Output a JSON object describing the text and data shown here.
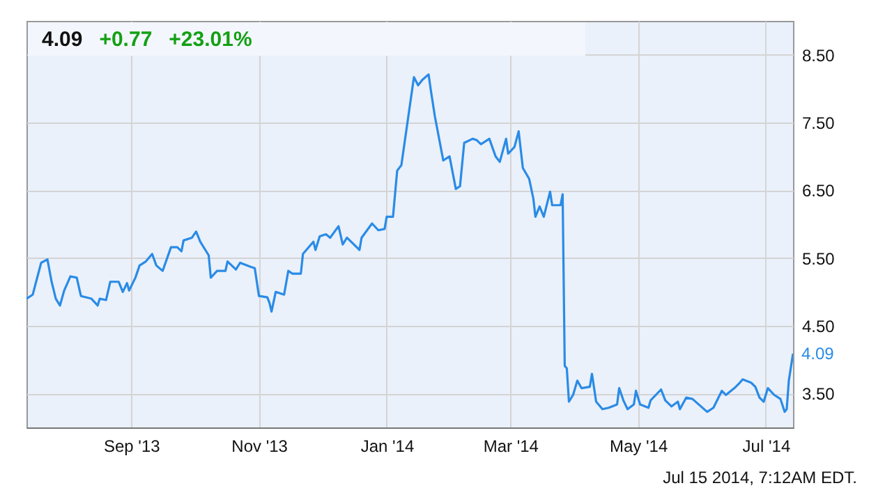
{
  "chart_data": {
    "type": "line",
    "annotations": [
      "4.09",
      "+0.77",
      "+23.01%",
      "Jul 15 2014, 7:12AM EDT.",
      {
        "text": "4.09",
        "x": "2014-07-14",
        "y": 4.09
      }
    ],
    "x": [
      "2013-07-13",
      "2013-07-16",
      "2013-07-17",
      "2013-07-20",
      "2013-07-23",
      "2013-07-25",
      "2013-07-27",
      "2013-07-29",
      "2013-07-31",
      "2013-08-03",
      "2013-08-06",
      "2013-08-08",
      "2013-08-13",
      "2013-08-16",
      "2013-08-17",
      "2013-08-20",
      "2013-08-22",
      "2013-08-26",
      "2013-08-28",
      "2013-08-30",
      "2013-08-31",
      "2013-09-03",
      "2013-09-05",
      "2013-09-08",
      "2013-09-11",
      "2013-09-13",
      "2013-09-16",
      "2013-09-20",
      "2013-09-23",
      "2013-09-25",
      "2013-09-26",
      "2013-09-30",
      "2013-10-02",
      "2013-10-04",
      "2013-10-08",
      "2013-10-09",
      "2013-10-12",
      "2013-10-16",
      "2013-10-17",
      "2013-10-21",
      "2013-10-23",
      "2013-10-28",
      "2013-10-30",
      "2013-11-01",
      "2013-11-05",
      "2013-11-06",
      "2013-11-07",
      "2013-11-09",
      "2013-11-13",
      "2013-11-15",
      "2013-11-17",
      "2013-11-21",
      "2013-11-22",
      "2013-11-27",
      "2013-11-28",
      "2013-11-30",
      "2013-12-03",
      "2013-12-05",
      "2013-12-09",
      "2013-12-11",
      "2013-12-13",
      "2013-12-19",
      "2013-12-20",
      "2013-12-25",
      "2013-12-28",
      "2013-12-31",
      "2014-01-01",
      "2014-01-04",
      "2014-01-06",
      "2014-01-08",
      "2014-01-14",
      "2014-01-16",
      "2014-01-18",
      "2014-01-21",
      "2014-01-22",
      "2014-01-24",
      "2014-01-28",
      "2014-01-31",
      "2014-02-03",
      "2014-02-05",
      "2014-02-07",
      "2014-02-11",
      "2014-02-13",
      "2014-02-15",
      "2014-02-19",
      "2014-02-22",
      "2014-02-24",
      "2014-02-27",
      "2014-02-28",
      "2014-03-03",
      "2014-03-05",
      "2014-03-07",
      "2014-03-10",
      "2014-03-12",
      "2014-03-13",
      "2014-03-15",
      "2014-03-17",
      "2014-03-20",
      "2014-03-21",
      "2014-03-25",
      "2014-03-26",
      "2014-03-27",
      "2014-03-28",
      "2014-03-29",
      "2014-03-31",
      "2014-04-02",
      "2014-04-04",
      "2014-04-08",
      "2014-04-09",
      "2014-04-11",
      "2014-04-14",
      "2014-04-17",
      "2014-04-21",
      "2014-04-22",
      "2014-04-24",
      "2014-04-26",
      "2014-04-29",
      "2014-04-30",
      "2014-05-02",
      "2014-05-06",
      "2014-05-07",
      "2014-05-12",
      "2014-05-14",
      "2014-05-17",
      "2014-05-20",
      "2014-05-21",
      "2014-05-24",
      "2014-05-27",
      "2014-06-03",
      "2014-06-06",
      "2014-06-10",
      "2014-06-12",
      "2014-06-16",
      "2014-06-18",
      "2014-06-20",
      "2014-06-24",
      "2014-06-26",
      "2014-06-28",
      "2014-06-30",
      "2014-07-02",
      "2014-07-05",
      "2014-07-08",
      "2014-07-10",
      "2014-07-11",
      "2014-07-12",
      "2014-07-14"
    ],
    "series": [
      {
        "color": "#2a8be6",
        "values": [
          4.9,
          4.96,
          5.08,
          5.43,
          5.48,
          5.15,
          4.9,
          4.8,
          5.02,
          5.23,
          5.21,
          4.94,
          4.9,
          4.8,
          4.9,
          4.88,
          5.15,
          5.15,
          5.0,
          5.13,
          5.02,
          5.21,
          5.39,
          5.45,
          5.56,
          5.39,
          5.31,
          5.66,
          5.66,
          5.6,
          5.76,
          5.8,
          5.89,
          5.74,
          5.54,
          5.21,
          5.31,
          5.31,
          5.45,
          5.33,
          5.43,
          5.37,
          5.35,
          4.94,
          4.92,
          4.84,
          4.71,
          5.0,
          4.96,
          5.31,
          5.27,
          5.27,
          5.56,
          5.74,
          5.62,
          5.82,
          5.85,
          5.8,
          5.97,
          5.7,
          5.8,
          5.62,
          5.8,
          6.01,
          5.91,
          5.93,
          6.11,
          6.11,
          6.79,
          6.87,
          8.17,
          8.05,
          8.13,
          8.21,
          7.99,
          7.59,
          6.94,
          7.0,
          6.52,
          6.56,
          7.2,
          7.26,
          7.24,
          7.18,
          7.26,
          7.0,
          6.92,
          7.26,
          7.04,
          7.14,
          7.37,
          6.83,
          6.67,
          6.38,
          6.11,
          6.26,
          6.11,
          6.48,
          6.28,
          6.28,
          6.44,
          3.91,
          3.87,
          3.38,
          3.48,
          3.69,
          3.58,
          3.6,
          3.79,
          3.38,
          3.27,
          3.29,
          3.34,
          3.58,
          3.4,
          3.27,
          3.34,
          3.54,
          3.34,
          3.29,
          3.4,
          3.56,
          3.4,
          3.31,
          3.38,
          3.27,
          3.44,
          3.42,
          3.23,
          3.29,
          3.54,
          3.48,
          3.58,
          3.64,
          3.71,
          3.66,
          3.6,
          3.44,
          3.38,
          3.58,
          3.48,
          3.42,
          3.23,
          3.27,
          3.69,
          4.09
        ]
      }
    ],
    "xlim": [
      "2013-07-13",
      "2014-07-14"
    ],
    "xticks": [
      {
        "value": "2013-09-01",
        "label": "Sep '13"
      },
      {
        "value": "2013-11-01",
        "label": "Nov '13"
      },
      {
        "value": "2014-01-01",
        "label": "Jan '14"
      },
      {
        "value": "2014-03-01",
        "label": "Mar '14"
      },
      {
        "value": "2014-05-01",
        "label": "May '14"
      },
      {
        "value": "2014-07-01",
        "label": "Jul '14"
      }
    ],
    "ylim": [
      3.0,
      9.0
    ],
    "yticks": [
      {
        "value": 3.5,
        "label": "3.50"
      },
      {
        "value": 4.5,
        "label": "4.50"
      },
      {
        "value": 5.5,
        "label": "5.50"
      },
      {
        "value": 6.5,
        "label": "6.50"
      },
      {
        "value": 7.5,
        "label": "7.50"
      },
      {
        "value": 8.5,
        "label": "8.50"
      }
    ],
    "grid": true
  }
}
